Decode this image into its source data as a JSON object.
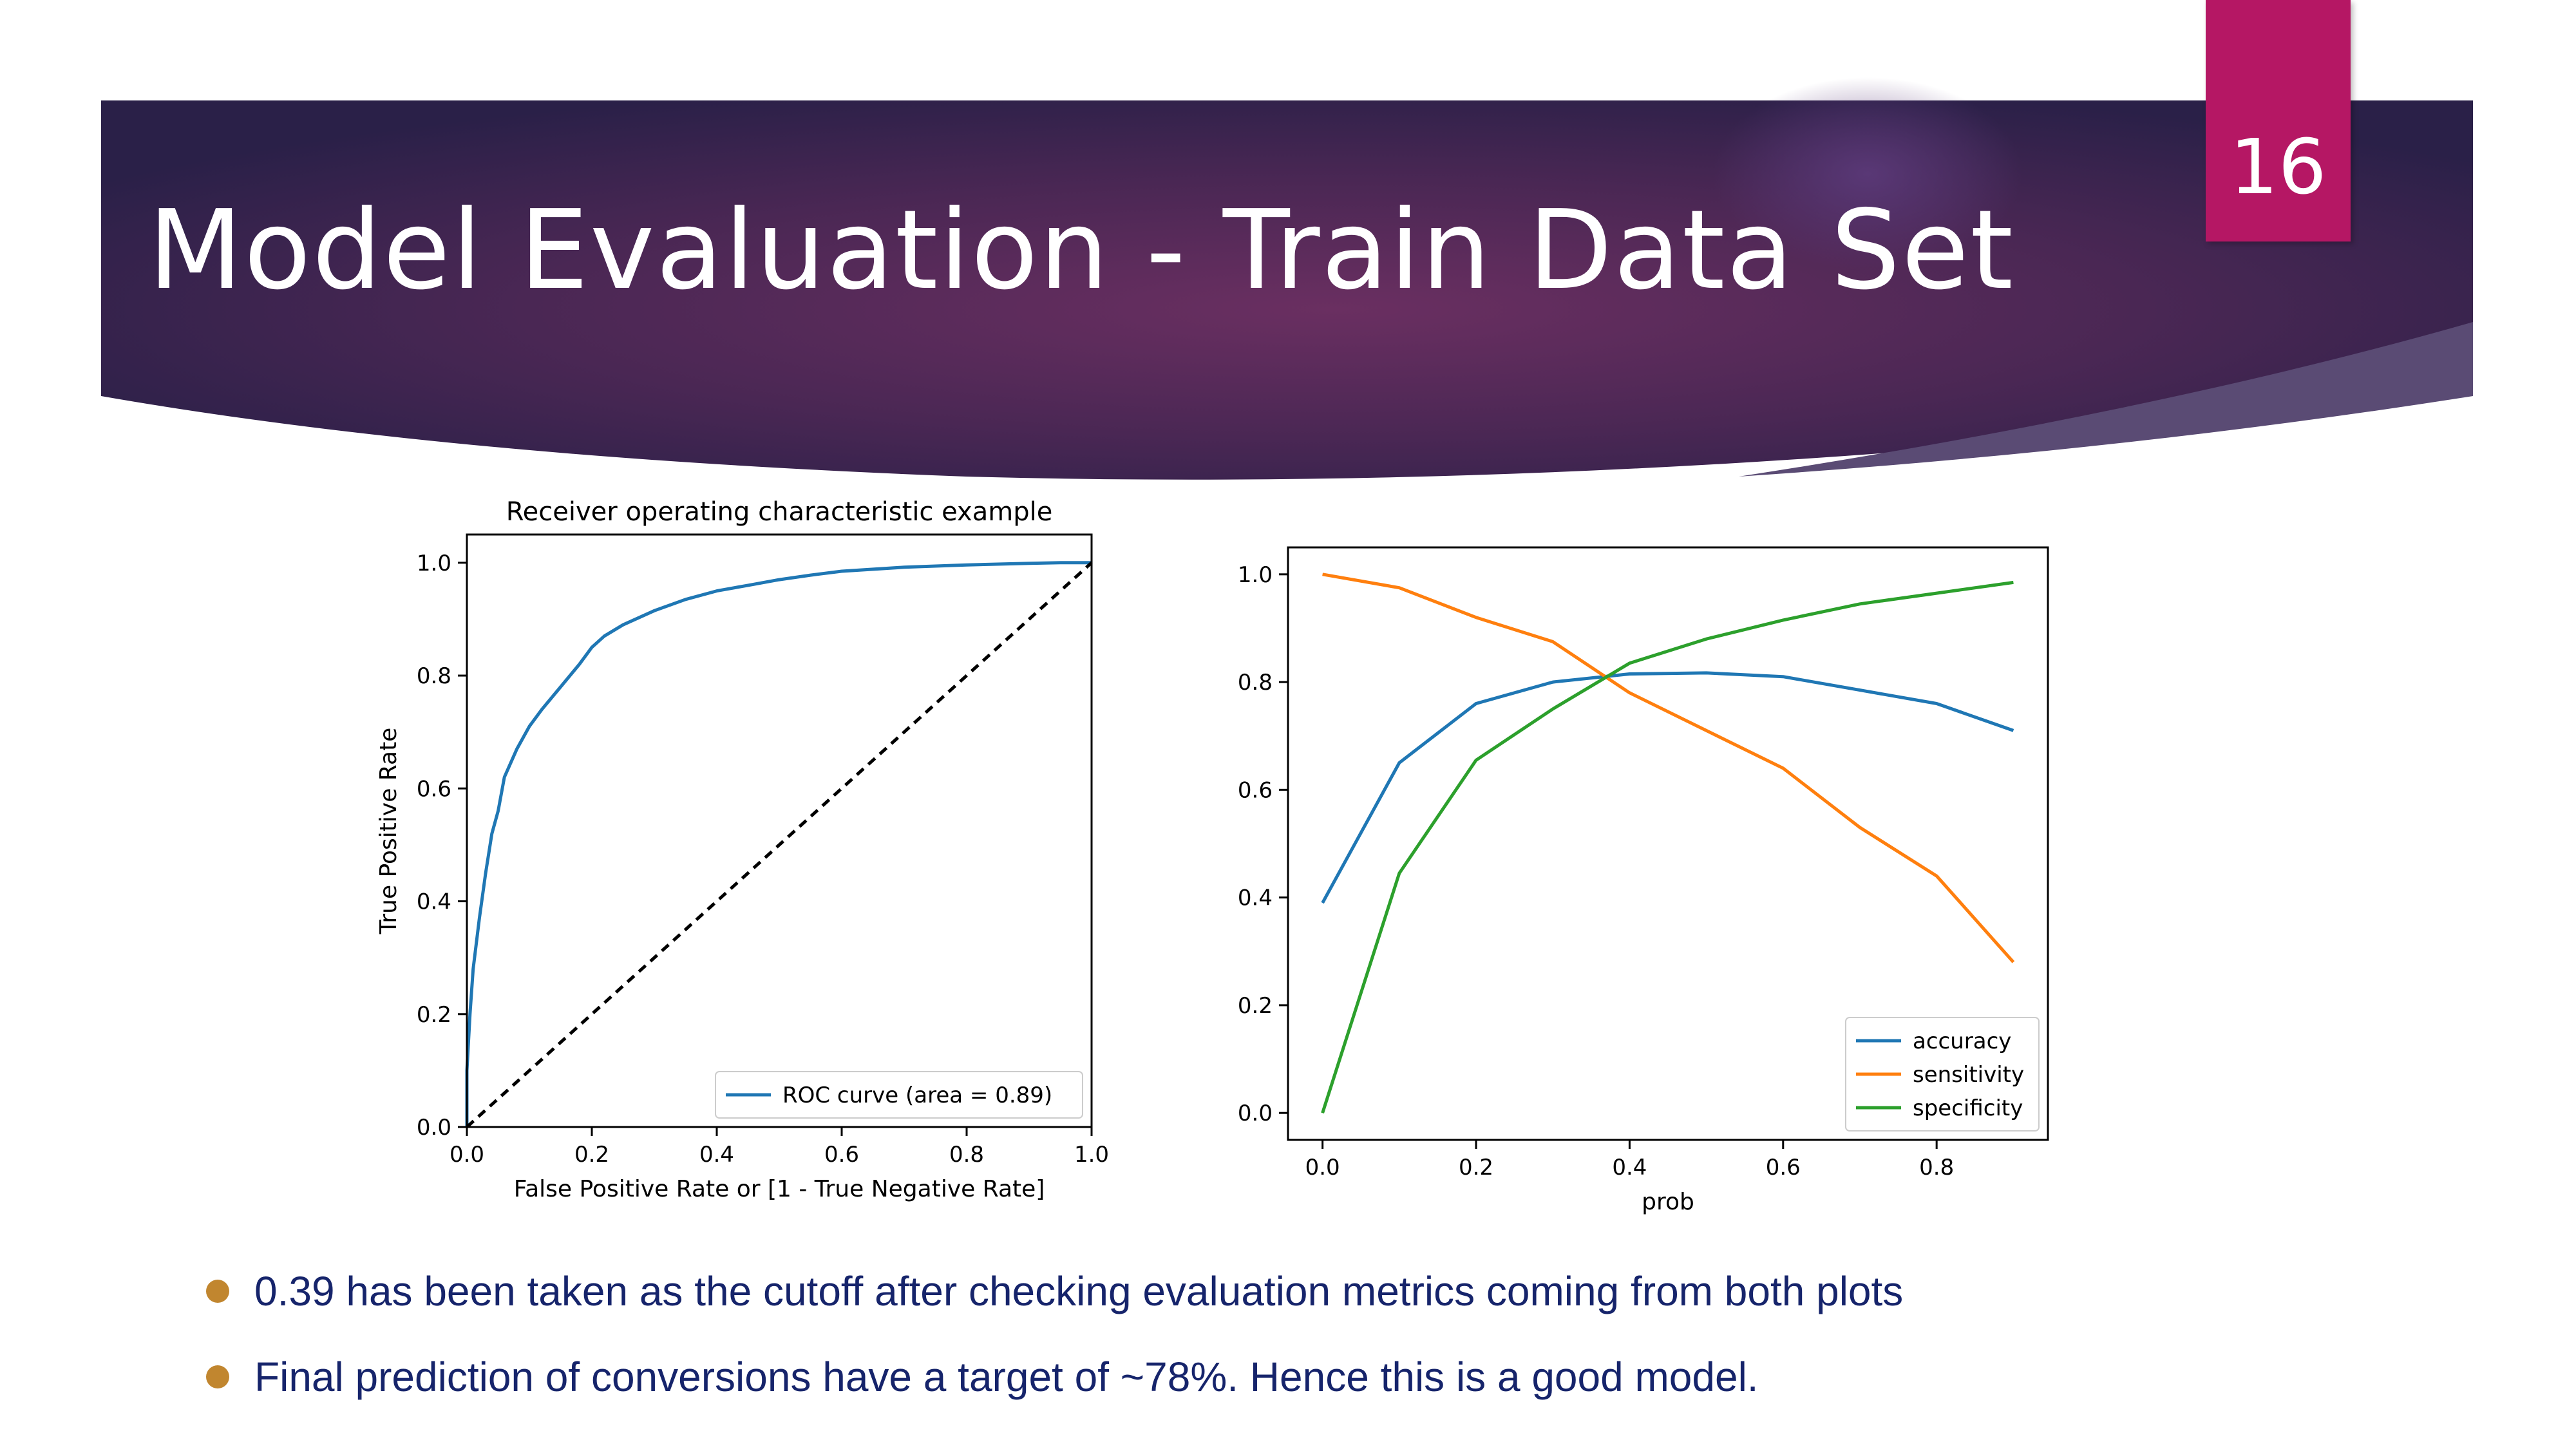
{
  "slide": {
    "title": "Model Evaluation - Train Data Set",
    "page_number": "16",
    "colors": {
      "banner_dark": "#2a2048",
      "banner_mid": "#6a2f61",
      "page_badge": "#b51764",
      "bullet_text": "#16246b",
      "bullet_dot": "#c1862f"
    }
  },
  "bullets": [
    "0.39 has been taken as the cutoff after checking evaluation metrics coming from both plots",
    "Final prediction of conversions have a target of ~78%. Hence this is a good model."
  ],
  "chart_data": [
    {
      "type": "line",
      "title": "Receiver operating characteristic example",
      "xlabel": "False Positive Rate or [1 - True Negative Rate]",
      "ylabel": "True Positive Rate",
      "xlim": [
        0.0,
        1.0
      ],
      "ylim": [
        0.0,
        1.05
      ],
      "xticks": [
        "0.0",
        "0.2",
        "0.4",
        "0.6",
        "0.8",
        "1.0"
      ],
      "yticks": [
        "0.0",
        "0.2",
        "0.4",
        "0.6",
        "0.8",
        "1.0"
      ],
      "grid": false,
      "legend_position": "lower-right",
      "series": [
        {
          "name": "ROC curve (area = 0.89)",
          "color": "#1f77b4",
          "style": "solid",
          "x": [
            0.0,
            0.0,
            0.005,
            0.01,
            0.02,
            0.03,
            0.04,
            0.05,
            0.06,
            0.08,
            0.1,
            0.12,
            0.15,
            0.18,
            0.2,
            0.22,
            0.25,
            0.3,
            0.35,
            0.4,
            0.45,
            0.5,
            0.55,
            0.6,
            0.7,
            0.8,
            0.9,
            0.95,
            1.0
          ],
          "y": [
            0.0,
            0.1,
            0.2,
            0.28,
            0.37,
            0.45,
            0.52,
            0.56,
            0.62,
            0.67,
            0.71,
            0.74,
            0.78,
            0.82,
            0.85,
            0.87,
            0.89,
            0.915,
            0.935,
            0.95,
            0.96,
            0.97,
            0.978,
            0.985,
            0.992,
            0.996,
            0.999,
            1.0,
            1.0
          ]
        },
        {
          "name": "",
          "color": "#000000",
          "style": "dashed",
          "x": [
            0.0,
            1.0
          ],
          "y": [
            0.0,
            1.0
          ]
        }
      ]
    },
    {
      "type": "line",
      "title": "",
      "xlabel": "prob",
      "ylabel": "",
      "xlim": [
        -0.045,
        0.945
      ],
      "ylim": [
        -0.05,
        1.05
      ],
      "xticks": [
        "0.0",
        "0.2",
        "0.4",
        "0.6",
        "0.8"
      ],
      "yticks": [
        "0.0",
        "0.2",
        "0.4",
        "0.6",
        "0.8",
        "1.0"
      ],
      "grid": false,
      "legend_position": "lower-right",
      "x": [
        0.0,
        0.1,
        0.2,
        0.3,
        0.4,
        0.5,
        0.6,
        0.7,
        0.8,
        0.9
      ],
      "series": [
        {
          "name": "accuracy",
          "color": "#1f77b4",
          "values": [
            0.39,
            0.65,
            0.76,
            0.8,
            0.815,
            0.817,
            0.81,
            0.785,
            0.76,
            0.71
          ]
        },
        {
          "name": "sensitivity",
          "color": "#ff7f0e",
          "values": [
            1.0,
            0.975,
            0.92,
            0.875,
            0.78,
            0.71,
            0.64,
            0.53,
            0.44,
            0.28
          ]
        },
        {
          "name": "specificity",
          "color": "#2ca02c",
          "values": [
            0.0,
            0.445,
            0.655,
            0.75,
            0.835,
            0.88,
            0.915,
            0.945,
            0.965,
            0.985
          ]
        }
      ]
    }
  ]
}
